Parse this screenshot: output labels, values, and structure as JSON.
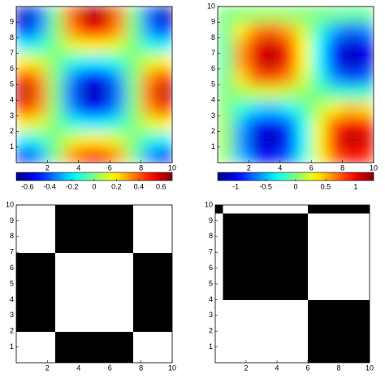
{
  "chart_data": [
    {
      "type": "heatmap",
      "colormap": "jet",
      "xlim": [
        0,
        10
      ],
      "ylim": [
        0,
        10
      ],
      "xticks": [
        2,
        4,
        6,
        8,
        10
      ],
      "yticks": [
        1,
        2,
        3,
        4,
        5,
        6,
        7,
        8,
        9
      ],
      "clim": [
        -0.7,
        0.7
      ],
      "cticks": [
        -0.6,
        -0.4,
        -0.2,
        0,
        0.2,
        0.4,
        0.6
      ],
      "z": [
        [
          -0.5,
          -0.31,
          0,
          0.31,
          0.5,
          0.5,
          0.31,
          0,
          -0.31,
          -0.5
        ],
        [
          -0.19,
          -0.12,
          0,
          0.12,
          0.19,
          0.19,
          0.12,
          0,
          -0.12,
          -0.19
        ],
        [
          0.19,
          0.12,
          0,
          -0.12,
          -0.19,
          -0.19,
          -0.12,
          0,
          0.12,
          0.19
        ],
        [
          0.5,
          0.31,
          0,
          -0.31,
          -0.5,
          -0.5,
          -0.31,
          0,
          0.31,
          0.5
        ],
        [
          0.62,
          0.38,
          0,
          -0.38,
          -0.62,
          -0.62,
          -0.38,
          0,
          0.38,
          0.62
        ],
        [
          0.5,
          0.31,
          0,
          -0.31,
          -0.5,
          -0.5,
          -0.31,
          0,
          0.31,
          0.5
        ],
        [
          0.19,
          0.12,
          0,
          -0.12,
          -0.19,
          -0.19,
          -0.12,
          0,
          0.12,
          0.19
        ],
        [
          -0.19,
          -0.12,
          0,
          0.12,
          0.19,
          0.19,
          0.12,
          0,
          -0.12,
          -0.19
        ],
        [
          -0.5,
          -0.31,
          0,
          0.31,
          0.5,
          0.5,
          0.31,
          0,
          -0.31,
          -0.5
        ],
        [
          -0.62,
          -0.38,
          0,
          0.38,
          0.62,
          0.62,
          0.38,
          0,
          -0.38,
          -0.62
        ]
      ]
    },
    {
      "type": "heatmap",
      "colormap": "jet",
      "xlim": [
        0,
        10
      ],
      "ylim": [
        0,
        10
      ],
      "xticks": [
        2,
        4,
        6,
        8,
        10
      ],
      "yticks": [
        1,
        2,
        3,
        4,
        5,
        6,
        7,
        8,
        9,
        10
      ],
      "clim": [
        -1.3,
        1.3
      ],
      "cticks": [
        -1,
        -0.5,
        0,
        0.5,
        1
      ],
      "z": [
        [
          0.06,
          -0.5,
          -0.89,
          -0.99,
          -0.77,
          -0.28,
          0.28,
          0.77,
          0.99,
          0.89
        ],
        [
          0.07,
          -0.6,
          -1.07,
          -1.19,
          -0.92,
          -0.34,
          0.34,
          0.92,
          1.19,
          1.07
        ],
        [
          0.06,
          -0.5,
          -0.89,
          -0.99,
          -0.77,
          -0.28,
          0.28,
          0.77,
          0.99,
          0.89
        ],
        [
          0.03,
          -0.24,
          -0.42,
          -0.47,
          -0.36,
          -0.13,
          0.13,
          0.36,
          0.47,
          0.42
        ],
        [
          -0.01,
          0.1,
          0.19,
          0.21,
          0.16,
          0.06,
          -0.06,
          -0.16,
          -0.21,
          -0.19
        ],
        [
          -0.05,
          0.41,
          0.73,
          0.82,
          0.63,
          0.23,
          -0.23,
          -0.63,
          -0.82,
          -0.73
        ],
        [
          -0.07,
          0.58,
          1.04,
          1.16,
          0.9,
          0.33,
          -0.33,
          -0.9,
          -1.16,
          -1.04
        ],
        [
          -0.07,
          0.56,
          1.01,
          1.12,
          0.86,
          0.32,
          -0.32,
          -0.86,
          -1.12,
          -1.01
        ],
        [
          -0.04,
          0.36,
          0.64,
          0.71,
          0.55,
          0.2,
          -0.2,
          -0.55,
          -0.71,
          -0.64
        ],
        [
          0,
          0.03,
          0.06,
          0.07,
          0.05,
          0.02,
          -0.02,
          -0.05,
          -0.07,
          -0.06
        ]
      ]
    },
    {
      "type": "binary",
      "colors": [
        "#ffffff",
        "#000000"
      ],
      "xlim": [
        0,
        10
      ],
      "ylim": [
        0,
        10
      ],
      "xticks": [
        2,
        4,
        6,
        8,
        10
      ],
      "yticks": [
        1,
        2,
        3,
        4,
        5,
        6,
        7,
        8,
        9,
        10
      ],
      "z": [
        [
          0,
          0,
          0,
          0,
          0,
          1,
          1,
          1,
          1,
          1,
          1,
          1,
          1,
          1,
          1,
          0,
          0,
          0,
          0,
          0
        ],
        [
          0,
          0,
          0,
          0,
          0,
          1,
          1,
          1,
          1,
          1,
          1,
          1,
          1,
          1,
          1,
          0,
          0,
          0,
          0,
          0
        ],
        [
          0,
          0,
          0,
          0,
          0,
          1,
          1,
          1,
          1,
          1,
          1,
          1,
          1,
          1,
          1,
          0,
          0,
          0,
          0,
          0
        ],
        [
          0,
          0,
          0,
          0,
          0,
          1,
          1,
          1,
          1,
          1,
          1,
          1,
          1,
          1,
          1,
          0,
          0,
          0,
          0,
          0
        ],
        [
          1,
          1,
          1,
          1,
          1,
          0,
          0,
          0,
          0,
          0,
          0,
          0,
          0,
          0,
          0,
          1,
          1,
          1,
          1,
          1
        ],
        [
          1,
          1,
          1,
          1,
          1,
          0,
          0,
          0,
          0,
          0,
          0,
          0,
          0,
          0,
          0,
          1,
          1,
          1,
          1,
          1
        ],
        [
          1,
          1,
          1,
          1,
          1,
          0,
          0,
          0,
          0,
          0,
          0,
          0,
          0,
          0,
          0,
          1,
          1,
          1,
          1,
          1
        ],
        [
          1,
          1,
          1,
          1,
          1,
          0,
          0,
          0,
          0,
          0,
          0,
          0,
          0,
          0,
          0,
          1,
          1,
          1,
          1,
          1
        ],
        [
          1,
          1,
          1,
          1,
          1,
          0,
          0,
          0,
          0,
          0,
          0,
          0,
          0,
          0,
          0,
          1,
          1,
          1,
          1,
          1
        ],
        [
          1,
          1,
          1,
          1,
          1,
          0,
          0,
          0,
          0,
          0,
          0,
          0,
          0,
          0,
          0,
          1,
          1,
          1,
          1,
          1
        ],
        [
          1,
          1,
          1,
          1,
          1,
          0,
          0,
          0,
          0,
          0,
          0,
          0,
          0,
          0,
          0,
          1,
          1,
          1,
          1,
          1
        ],
        [
          1,
          1,
          1,
          1,
          1,
          0,
          0,
          0,
          0,
          0,
          0,
          0,
          0,
          0,
          0,
          1,
          1,
          1,
          1,
          1
        ],
        [
          1,
          1,
          1,
          1,
          1,
          0,
          0,
          0,
          0,
          0,
          0,
          0,
          0,
          0,
          0,
          1,
          1,
          1,
          1,
          1
        ],
        [
          1,
          1,
          1,
          1,
          1,
          0,
          0,
          0,
          0,
          0,
          0,
          0,
          0,
          0,
          0,
          1,
          1,
          1,
          1,
          1
        ],
        [
          0,
          0,
          0,
          0,
          0,
          1,
          1,
          1,
          1,
          1,
          1,
          1,
          1,
          1,
          1,
          0,
          0,
          0,
          0,
          0
        ],
        [
          0,
          0,
          0,
          0,
          0,
          1,
          1,
          1,
          1,
          1,
          1,
          1,
          1,
          1,
          1,
          0,
          0,
          0,
          0,
          0
        ],
        [
          0,
          0,
          0,
          0,
          0,
          1,
          1,
          1,
          1,
          1,
          1,
          1,
          1,
          1,
          1,
          0,
          0,
          0,
          0,
          0
        ],
        [
          0,
          0,
          0,
          0,
          0,
          1,
          1,
          1,
          1,
          1,
          1,
          1,
          1,
          1,
          1,
          0,
          0,
          0,
          0,
          0
        ],
        [
          0,
          0,
          0,
          0,
          0,
          1,
          1,
          1,
          1,
          1,
          1,
          1,
          1,
          1,
          1,
          0,
          0,
          0,
          0,
          0
        ],
        [
          0,
          0,
          0,
          0,
          0,
          1,
          1,
          1,
          1,
          1,
          1,
          1,
          1,
          1,
          1,
          0,
          0,
          0,
          0,
          0
        ]
      ]
    },
    {
      "type": "binary",
      "colors": [
        "#ffffff",
        "#000000"
      ],
      "xlim": [
        0,
        10
      ],
      "ylim": [
        0,
        10
      ],
      "xticks": [
        2,
        4,
        6,
        8,
        10
      ],
      "yticks": [
        1,
        2,
        3,
        4,
        5,
        6,
        7,
        8,
        9,
        10
      ],
      "z": [
        [
          0,
          0,
          0,
          0,
          0,
          0,
          0,
          0,
          0,
          0,
          0,
          0,
          1,
          1,
          1,
          1,
          1,
          1,
          1,
          1
        ],
        [
          0,
          0,
          0,
          0,
          0,
          0,
          0,
          0,
          0,
          0,
          0,
          0,
          1,
          1,
          1,
          1,
          1,
          1,
          1,
          1
        ],
        [
          0,
          0,
          0,
          0,
          0,
          0,
          0,
          0,
          0,
          0,
          0,
          0,
          1,
          1,
          1,
          1,
          1,
          1,
          1,
          1
        ],
        [
          0,
          0,
          0,
          0,
          0,
          0,
          0,
          0,
          0,
          0,
          0,
          0,
          1,
          1,
          1,
          1,
          1,
          1,
          1,
          1
        ],
        [
          0,
          0,
          0,
          0,
          0,
          0,
          0,
          0,
          0,
          0,
          0,
          0,
          1,
          1,
          1,
          1,
          1,
          1,
          1,
          1
        ],
        [
          0,
          0,
          0,
          0,
          0,
          0,
          0,
          0,
          0,
          0,
          0,
          0,
          1,
          1,
          1,
          1,
          1,
          1,
          1,
          1
        ],
        [
          0,
          0,
          0,
          0,
          0,
          0,
          0,
          0,
          0,
          0,
          0,
          0,
          1,
          1,
          1,
          1,
          1,
          1,
          1,
          1
        ],
        [
          0,
          0,
          0,
          0,
          0,
          0,
          0,
          0,
          0,
          0,
          0,
          0,
          1,
          1,
          1,
          1,
          1,
          1,
          1,
          1
        ],
        [
          0,
          1,
          1,
          1,
          1,
          1,
          1,
          1,
          1,
          1,
          1,
          1,
          0,
          0,
          0,
          0,
          0,
          0,
          0,
          0
        ],
        [
          0,
          1,
          1,
          1,
          1,
          1,
          1,
          1,
          1,
          1,
          1,
          1,
          0,
          0,
          0,
          0,
          0,
          0,
          0,
          0
        ],
        [
          0,
          1,
          1,
          1,
          1,
          1,
          1,
          1,
          1,
          1,
          1,
          1,
          0,
          0,
          0,
          0,
          0,
          0,
          0,
          0
        ],
        [
          0,
          1,
          1,
          1,
          1,
          1,
          1,
          1,
          1,
          1,
          1,
          1,
          0,
          0,
          0,
          0,
          0,
          0,
          0,
          0
        ],
        [
          0,
          1,
          1,
          1,
          1,
          1,
          1,
          1,
          1,
          1,
          1,
          1,
          0,
          0,
          0,
          0,
          0,
          0,
          0,
          0
        ],
        [
          0,
          1,
          1,
          1,
          1,
          1,
          1,
          1,
          1,
          1,
          1,
          1,
          0,
          0,
          0,
          0,
          0,
          0,
          0,
          0
        ],
        [
          0,
          1,
          1,
          1,
          1,
          1,
          1,
          1,
          1,
          1,
          1,
          1,
          0,
          0,
          0,
          0,
          0,
          0,
          0,
          0
        ],
        [
          0,
          1,
          1,
          1,
          1,
          1,
          1,
          1,
          1,
          1,
          1,
          1,
          0,
          0,
          0,
          0,
          0,
          0,
          0,
          0
        ],
        [
          0,
          1,
          1,
          1,
          1,
          1,
          1,
          1,
          1,
          1,
          1,
          1,
          0,
          0,
          0,
          0,
          0,
          0,
          0,
          0
        ],
        [
          0,
          1,
          1,
          1,
          1,
          1,
          1,
          1,
          1,
          1,
          1,
          1,
          0,
          0,
          0,
          0,
          0,
          0,
          0,
          0
        ],
        [
          0,
          1,
          1,
          1,
          1,
          1,
          1,
          1,
          1,
          1,
          1,
          1,
          0,
          0,
          0,
          0,
          0,
          0,
          0,
          0
        ],
        [
          1,
          0,
          0,
          0,
          0,
          0,
          0,
          0,
          0,
          0,
          0,
          0,
          1,
          1,
          1,
          1,
          1,
          1,
          1,
          1
        ]
      ]
    }
  ]
}
